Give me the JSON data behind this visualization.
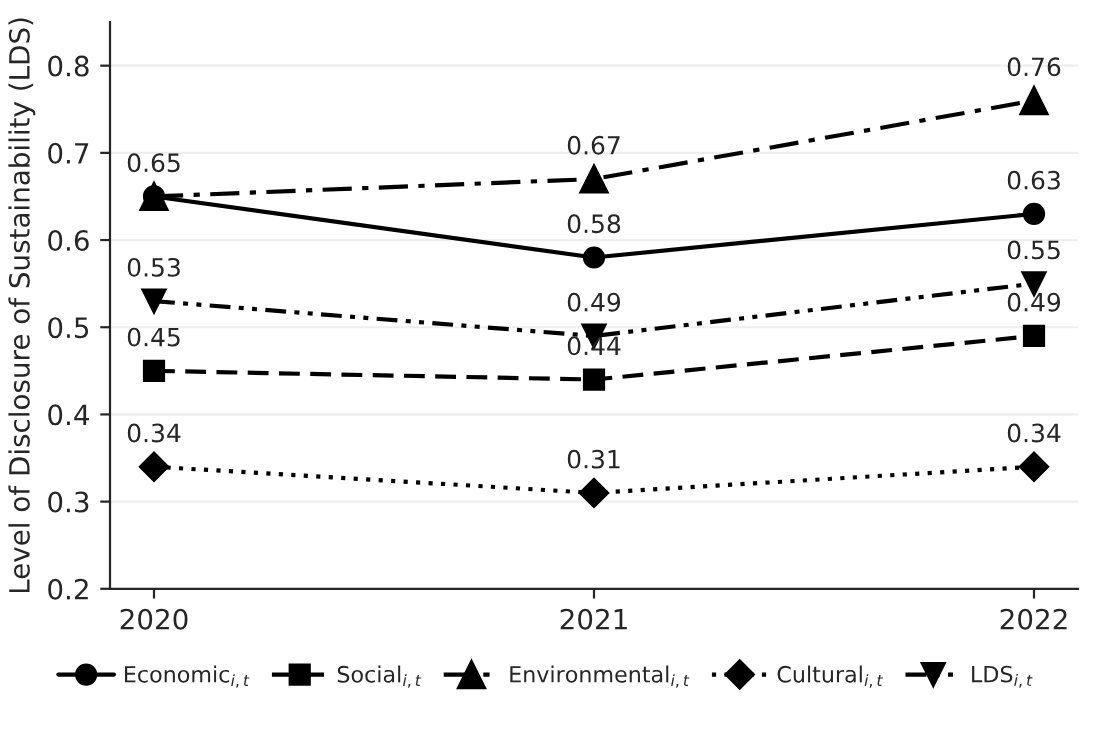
{
  "chart_data": {
    "type": "line",
    "ylabel": "Level of Disclosure of Sustainability (LDS)",
    "x": [
      2020,
      2021,
      2022
    ],
    "xlim": [
      2019.9,
      2022.1
    ],
    "xticks": [
      2020,
      2021,
      2022
    ],
    "ylim": [
      0.2,
      0.85
    ],
    "yticks": [
      0.2,
      0.3,
      0.4,
      0.5,
      0.6,
      0.7,
      0.8
    ],
    "grid": "y",
    "legend": "bottom",
    "series": [
      {
        "name": "Economic$_{i,t}$",
        "color": "#000000",
        "values": [
          0.65,
          0.58,
          0.63
        ],
        "marker": "circle",
        "line_style": "solid",
        "value_labels": [
          "0.65",
          "0.58",
          "0.63"
        ]
      },
      {
        "name": "Social$_{i,t}$",
        "color": "#000000",
        "values": [
          0.45,
          0.44,
          0.49
        ],
        "marker": "square",
        "line_style": "dashed",
        "value_labels": [
          "0.45",
          "0.44",
          "0.49"
        ]
      },
      {
        "name": "Environmental$_{i,t}$",
        "color": "#000000",
        "values": [
          0.65,
          0.67,
          0.76
        ],
        "marker": "triangle",
        "line_style": "dashdot",
        "value_labels": [
          null,
          "0.67",
          "0.76"
        ]
      },
      {
        "name": "Cultural$_{i,t}$",
        "color": "#000000",
        "values": [
          0.34,
          0.31,
          0.34
        ],
        "marker": "diamond",
        "line_style": "dotted",
        "value_labels": [
          "0.34",
          "0.31",
          "0.34"
        ]
      },
      {
        "name": "LDS$_{i,t}$",
        "color": "#000000",
        "values": [
          0.53,
          0.49,
          0.55
        ],
        "marker": "triangle_down",
        "line_style": "dashdotdot",
        "value_labels": [
          "0.53",
          "0.49",
          "0.55"
        ]
      }
    ]
  }
}
